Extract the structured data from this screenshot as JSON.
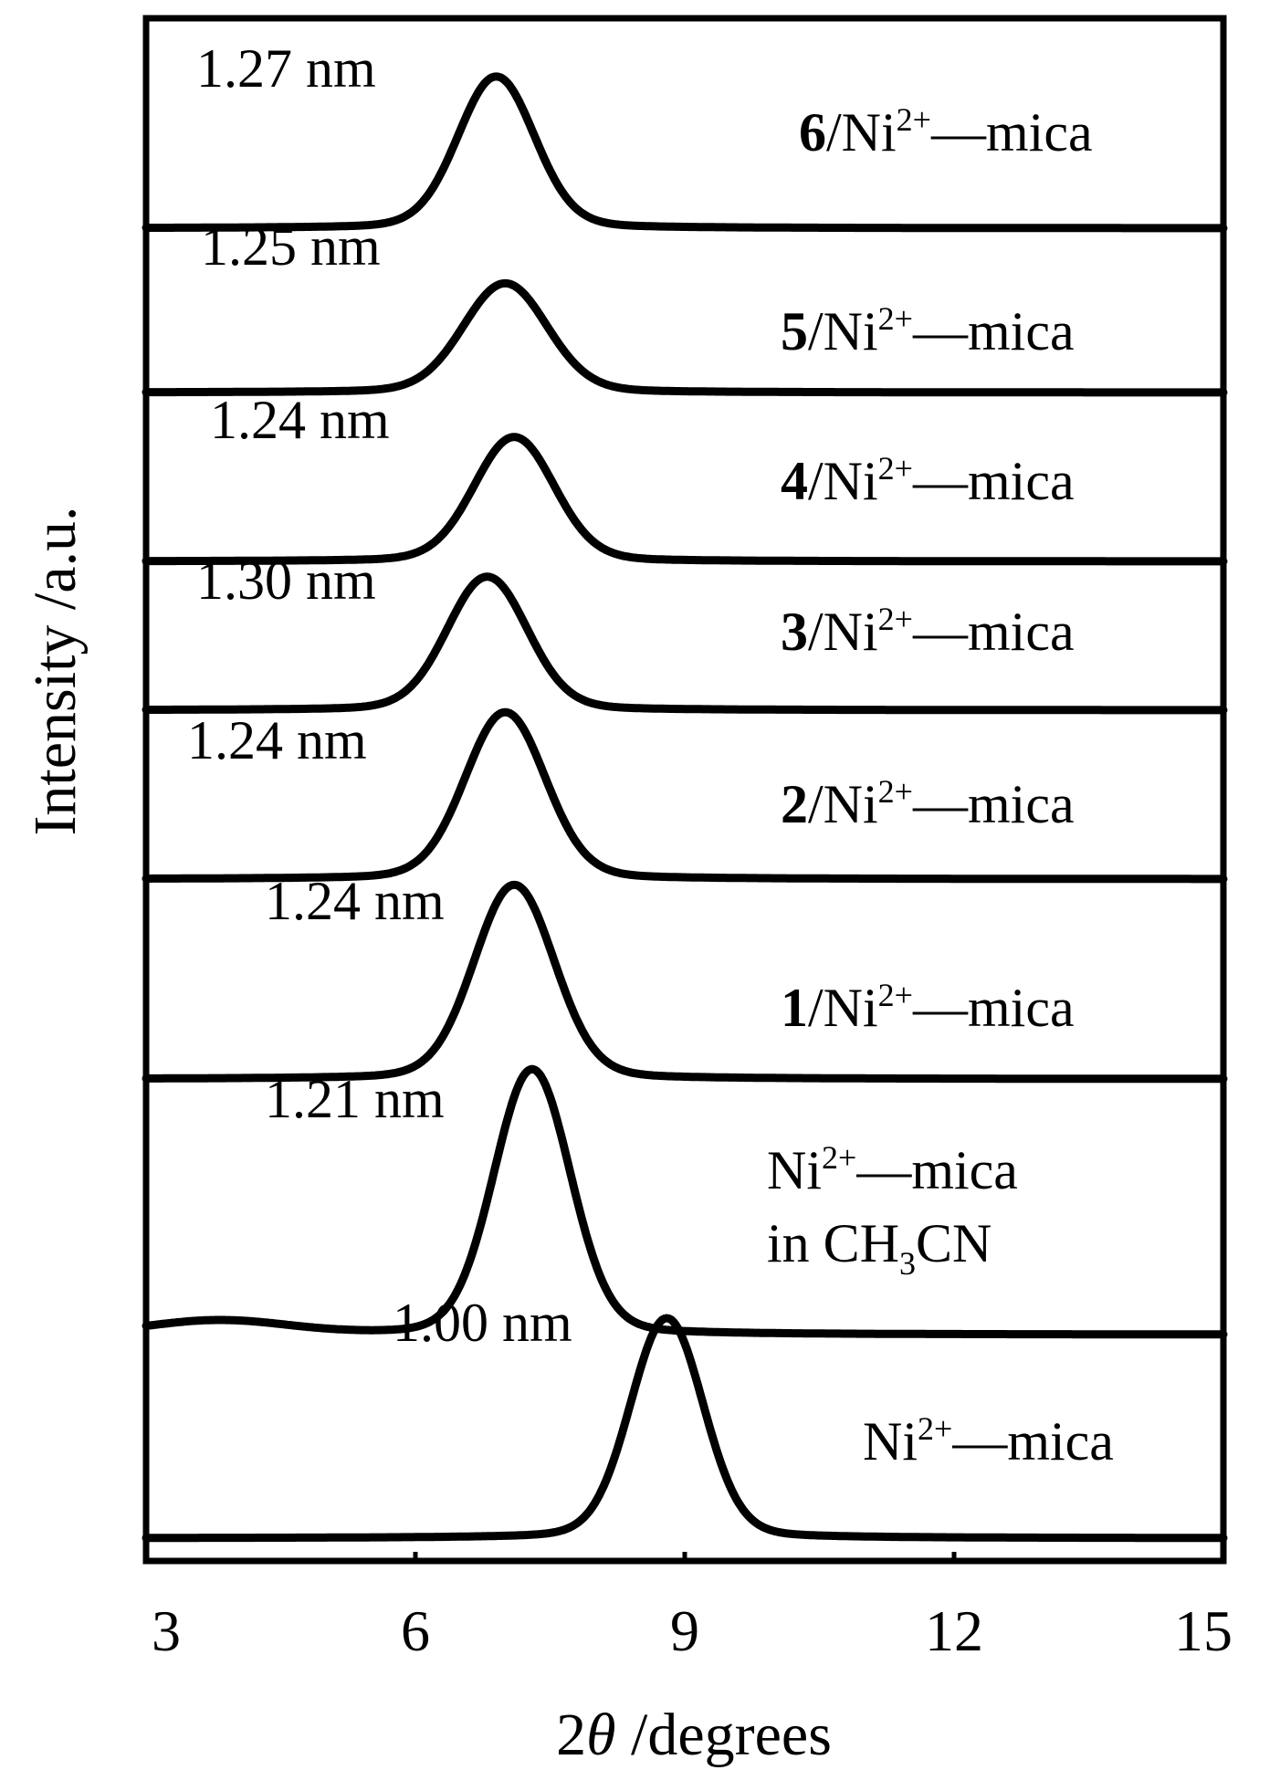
{
  "chart_data": {
    "type": "line",
    "title": "",
    "xlabel": {
      "prefix": "2",
      "symbol": "θ",
      "suffix": " /degrees"
    },
    "ylabel": "Intensity /a.u.",
    "xlim": [
      3,
      15
    ],
    "xticks": [
      "3",
      "6",
      "9",
      "12",
      "15"
    ],
    "grid": false,
    "legend": "none",
    "series": [
      {
        "name_prefix": "6",
        "name_main": "/Ni",
        "name_sup": "2+",
        "name_tail": "—mica",
        "name_line2": "",
        "d_spacing": "1.27 nm",
        "peak_2theta": 6.9,
        "peak_height": 1.0,
        "width": 0.42,
        "baseline": 0
      },
      {
        "name_prefix": "5",
        "name_main": "/Ni",
        "name_sup": "2+",
        "name_tail": "—mica",
        "name_line2": "",
        "d_spacing": "1.25 nm",
        "peak_2theta": 7.0,
        "peak_height": 0.72,
        "width": 0.46,
        "baseline": 0
      },
      {
        "name_prefix": "4",
        "name_main": "/Ni",
        "name_sup": "2+",
        "name_tail": "—mica",
        "name_line2": "",
        "d_spacing": "1.24 nm",
        "peak_2theta": 7.1,
        "peak_height": 0.82,
        "width": 0.44,
        "baseline": 0
      },
      {
        "name_prefix": "3",
        "name_main": "/Ni",
        "name_sup": "2+",
        "name_tail": "—mica",
        "name_line2": "",
        "d_spacing": "1.30 nm",
        "peak_2theta": 6.8,
        "peak_height": 0.88,
        "width": 0.44,
        "baseline": 0
      },
      {
        "name_prefix": "2",
        "name_main": "/Ni",
        "name_sup": "2+",
        "name_tail": "—mica",
        "name_line2": "",
        "d_spacing": "1.24 nm",
        "peak_2theta": 7.0,
        "peak_height": 1.1,
        "width": 0.44,
        "baseline": 0
      },
      {
        "name_prefix": "1",
        "name_main": "/Ni",
        "name_sup": "2+",
        "name_tail": "—mica",
        "name_line2": "",
        "d_spacing": "1.24 nm",
        "peak_2theta": 7.1,
        "peak_height": 1.28,
        "width": 0.44,
        "baseline": 0
      },
      {
        "name_prefix": "",
        "name_main": "Ni",
        "name_sup": "2+",
        "name_tail": "—mica",
        "name_line2": {
          "pre": "in CH",
          "sub": "3",
          "post": "CN"
        },
        "d_spacing": "1.21 nm",
        "peak_2theta": 7.3,
        "peak_height": 1.75,
        "width": 0.42,
        "baseline": 0.1
      },
      {
        "name_prefix": "",
        "name_main": "Ni",
        "name_sup": "2+",
        "name_tail": "—mica",
        "name_line2": "",
        "d_spacing": "1.00 nm",
        "peak_2theta": 8.8,
        "peak_height": 1.45,
        "width": 0.4,
        "baseline": 0
      }
    ]
  }
}
